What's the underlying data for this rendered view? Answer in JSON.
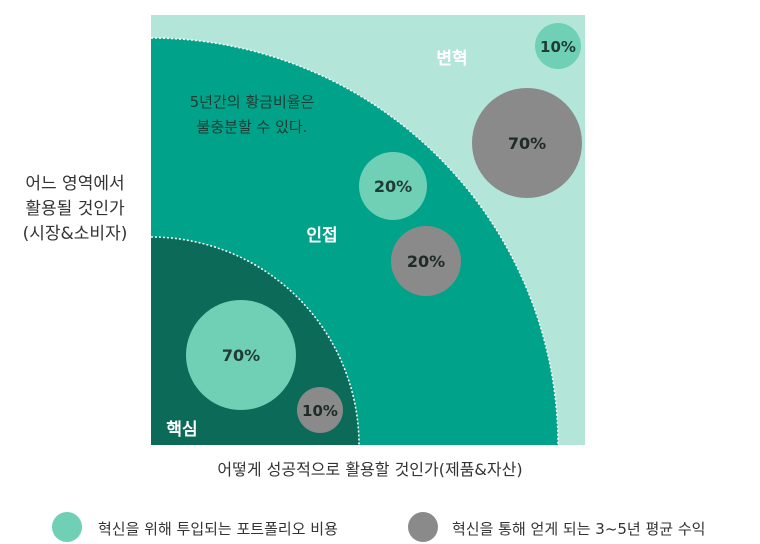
{
  "axes": {
    "y_label_lines": [
      "어느 영역에서",
      "활용될 것인가",
      "(시장&소비자)"
    ],
    "x_label": "어떻게 성공적으로 활용할 것인가(제품&자산)"
  },
  "zones": {
    "transform": "변혁",
    "adjacent": "인접",
    "core": "핵심"
  },
  "annotation_lines": [
    "5년간의 황금비율은",
    "불충분할 수 있다."
  ],
  "bubbles": {
    "core_investment": "70%",
    "core_return": "10%",
    "adjacent_investment": "20%",
    "adjacent_return": "20%",
    "transform_investment": "10%",
    "transform_return": "70%"
  },
  "legend": {
    "investment": "혁신을 위해 투입되는 포트폴리오 비용",
    "return": "혁신을 통해 얻게 되는 3~5년 평균 수익"
  },
  "colors": {
    "transform": "#b3e6d9",
    "adjacent": "#00a389",
    "core": "#0c6b58",
    "investment_bubble": "#6fd0b6",
    "return_bubble": "#8a8a8a"
  }
}
